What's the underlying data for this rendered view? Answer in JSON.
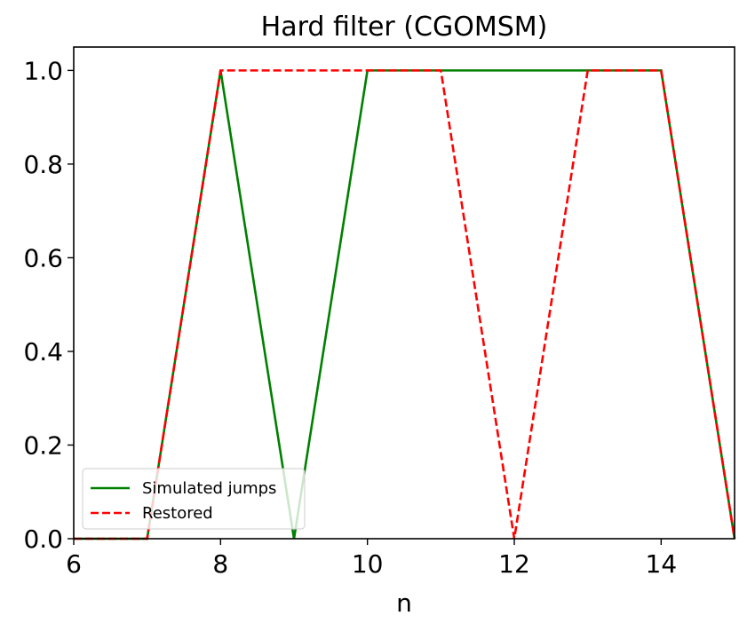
{
  "chart_data": {
    "type": "line",
    "title": "Hard filter (CGOMSM)",
    "xlabel": "n",
    "ylabel": "",
    "xlim": [
      6,
      15
    ],
    "ylim": [
      0,
      1.05
    ],
    "xticks": [
      6,
      8,
      10,
      12,
      14
    ],
    "yticks": [
      0.0,
      0.2,
      0.4,
      0.6,
      0.8,
      1.0
    ],
    "xtick_labels": [
      "6",
      "8",
      "10",
      "12",
      "14"
    ],
    "ytick_labels": [
      "0.0",
      "0.2",
      "0.4",
      "0.6",
      "0.8",
      "1.0"
    ],
    "grid": false,
    "legend_position": "lower-left",
    "series": [
      {
        "name": "Simulated jumps",
        "color": "#008000",
        "style": "solid",
        "x": [
          6,
          7,
          8,
          9,
          10,
          11,
          12,
          13,
          14,
          15
        ],
        "y": [
          0,
          0,
          1,
          0,
          1,
          1,
          1,
          1,
          1,
          0
        ]
      },
      {
        "name": "Restored",
        "color": "#ff0000",
        "style": "dashed",
        "x": [
          6,
          7,
          8,
          9,
          10,
          11,
          12,
          13,
          14,
          15
        ],
        "y": [
          0,
          0,
          1,
          1,
          1,
          1,
          0,
          1,
          1,
          0
        ]
      }
    ]
  }
}
